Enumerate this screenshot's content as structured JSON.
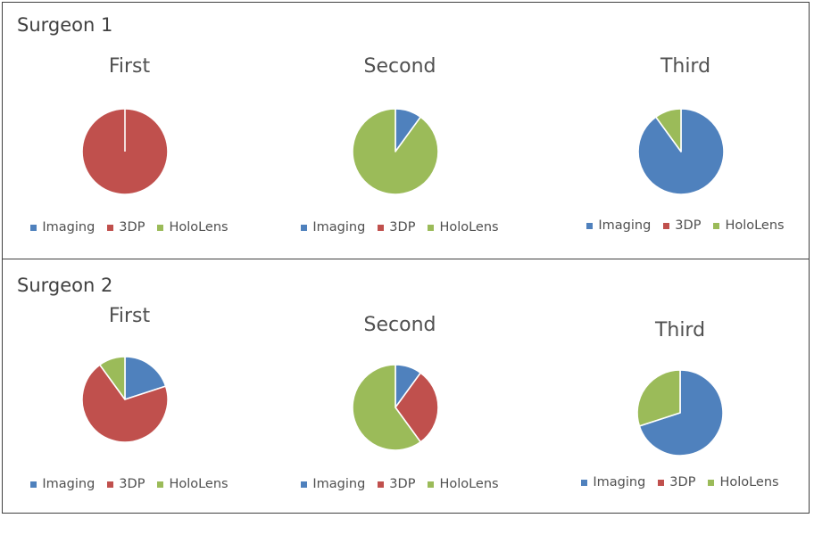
{
  "colors": {
    "Imaging": "#4f81bd",
    "3DP": "#c0504d",
    "HoloLens": "#9bbb59"
  },
  "legend": [
    "Imaging",
    "3DP",
    "HoloLens"
  ],
  "panels": [
    {
      "title": "Surgeon 1"
    },
    {
      "title": "Surgeon 2"
    }
  ],
  "chart_data": [
    {
      "type": "pie",
      "panel": "Surgeon 1",
      "title": "First",
      "labels": [
        "Imaging",
        "3DP",
        "HoloLens"
      ],
      "values": [
        0,
        100,
        0
      ]
    },
    {
      "type": "pie",
      "panel": "Surgeon 1",
      "title": "Second",
      "labels": [
        "Imaging",
        "3DP",
        "HoloLens"
      ],
      "values": [
        10,
        0,
        90
      ]
    },
    {
      "type": "pie",
      "panel": "Surgeon 1",
      "title": "Third",
      "labels": [
        "Imaging",
        "3DP",
        "HoloLens"
      ],
      "values": [
        90,
        0,
        10
      ]
    },
    {
      "type": "pie",
      "panel": "Surgeon 2",
      "title": "First",
      "labels": [
        "Imaging",
        "3DP",
        "HoloLens"
      ],
      "values": [
        20,
        70,
        10
      ]
    },
    {
      "type": "pie",
      "panel": "Surgeon 2",
      "title": "Second",
      "labels": [
        "Imaging",
        "3DP",
        "HoloLens"
      ],
      "values": [
        10,
        30,
        60
      ]
    },
    {
      "type": "pie",
      "panel": "Surgeon 2",
      "title": "Third",
      "labels": [
        "Imaging",
        "3DP",
        "HoloLens"
      ],
      "values": [
        70,
        0,
        30
      ]
    }
  ]
}
